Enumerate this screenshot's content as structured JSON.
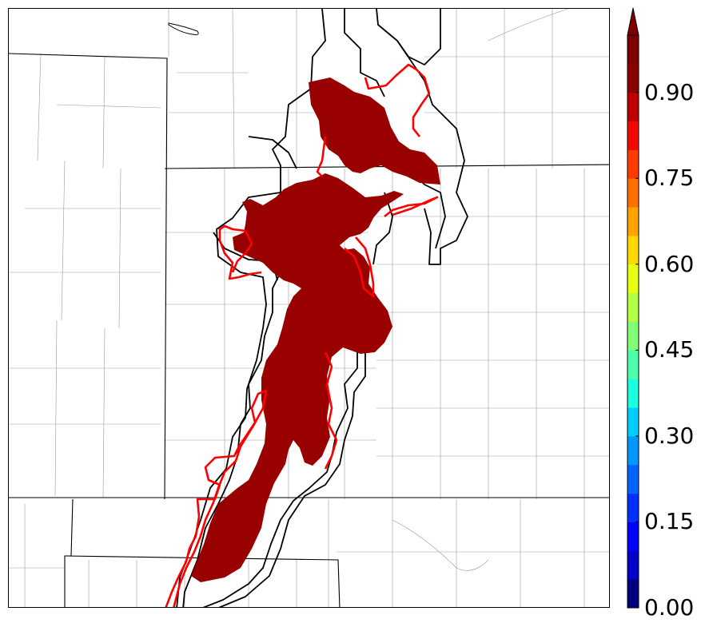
{
  "colorbar": {
    "ticks": [
      "0.00",
      "0.15",
      "0.30",
      "0.45",
      "0.60",
      "0.75",
      "0.90"
    ],
    "tick_values": [
      0.0,
      0.15,
      0.3,
      0.45,
      0.6,
      0.75,
      0.9
    ],
    "range": [
      0.0,
      1.0
    ],
    "extend": "max",
    "colors": [
      "#00007f",
      "#0000c8",
      "#0000ff",
      "#0030ff",
      "#0064ff",
      "#0098ff",
      "#00ccff",
      "#1affe0",
      "#4dffaa",
      "#80ff77",
      "#b3ff44",
      "#e6ff10",
      "#ffd800",
      "#ffa400",
      "#ff7000",
      "#ff3c00",
      "#f20800",
      "#c00000",
      "#8d0000",
      "#7f0000"
    ]
  },
  "map": {
    "probability_fill_color": "#990000",
    "reference_contour_color": "#ff0000",
    "ensemble_contour_color": "#000000",
    "boundary_color": "#000000"
  }
}
